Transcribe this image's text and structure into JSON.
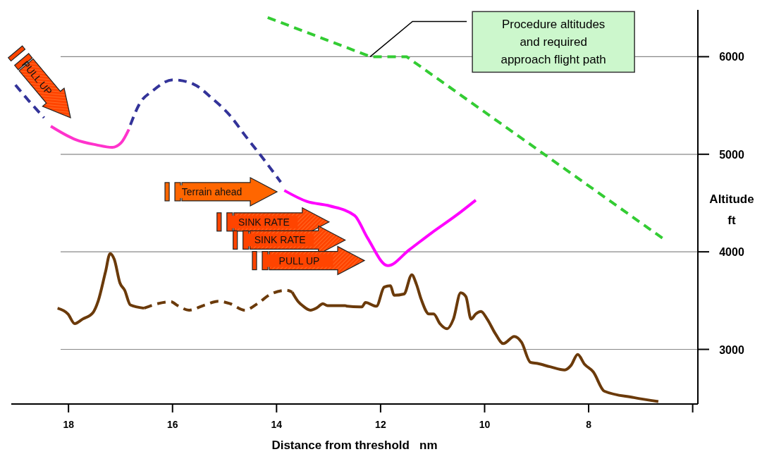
{
  "chart_data": {
    "type": "line",
    "xlabel": "Distance from threshold   nm",
    "ylabel": "Altitude\nft",
    "xlim": [
      19.1,
      5.9
    ],
    "ylim": [
      2440,
      6480
    ],
    "xticks": [
      18,
      16,
      14,
      12,
      10,
      8,
      {
        "value": 6,
        "label": null
      }
    ],
    "yticks": [
      3000,
      4000,
      5000,
      6000
    ],
    "grid": "y",
    "series": [
      {
        "color": "#6b3a0a",
        "line_style": "solid",
        "x": [
          18.21,
          18.01,
          17.88,
          17.73,
          17.53,
          17.43,
          17.29,
          17.2,
          17.12,
          17.01,
          16.92,
          16.81,
          16.55
        ],
        "values": [
          3422,
          3363,
          3264,
          3310,
          3376,
          3494,
          3791,
          3982,
          3923,
          3679,
          3606,
          3455,
          3422
        ]
      },
      {
        "color": "#6b3a0a",
        "line_style": "dashed",
        "x": [
          16.55,
          16.29,
          16.03,
          15.9,
          15.68,
          15.38,
          15.12,
          14.89,
          14.61,
          14.37,
          14.11,
          13.81,
          13.7
        ],
        "values": [
          3422,
          3468,
          3488,
          3448,
          3402,
          3455,
          3494,
          3468,
          3402,
          3468,
          3567,
          3606,
          3587
        ]
      },
      {
        "color": "#6b3a0a",
        "line_style": "solid",
        "x": [
          13.7,
          13.59,
          13.5,
          13.35,
          13.22,
          13.11,
          13.02,
          12.68,
          12.64,
          12.36,
          12.29,
          12.08,
          11.93,
          11.81,
          11.74,
          11.55,
          11.4,
          11.31,
          11.22,
          11.07,
          10.98,
          10.86,
          10.72,
          10.6,
          10.46,
          10.36,
          10.26,
          10.17,
          10.07,
          9.95,
          9.79,
          9.64,
          9.43,
          9.29,
          9.12,
          8.98,
          8.74,
          8.46,
          8.34,
          8.21,
          8.08,
          7.91,
          7.7,
          7.13,
          6.66
        ],
        "values": [
          3587,
          3494,
          3448,
          3402,
          3428,
          3468,
          3448,
          3448,
          3442,
          3435,
          3481,
          3442,
          3639,
          3653,
          3554,
          3567,
          3765,
          3666,
          3514,
          3363,
          3363,
          3264,
          3211,
          3310,
          3580,
          3541,
          3310,
          3363,
          3389,
          3310,
          3158,
          3059,
          3132,
          3073,
          2868,
          2855,
          2822,
          2789,
          2835,
          2947,
          2848,
          2769,
          2572,
          2506,
          2466
        ]
      },
      {
        "color": "#333399",
        "line_style": "dashed",
        "x": [
          19.02,
          18.78,
          18.47
        ],
        "values": [
          5710,
          5558,
          5374
        ]
      },
      {
        "color": "#333399",
        "line_style": "dashed",
        "x": [
          16.81,
          16.64,
          16.38,
          15.99,
          15.59,
          15.25,
          14.89,
          14.6,
          14.29,
          13.92
        ],
        "values": [
          5301,
          5512,
          5651,
          5763,
          5717,
          5578,
          5394,
          5189,
          4978,
          4715
        ]
      },
      {
        "color": "#ff33cc",
        "line_style": "solid",
        "x": [
          18.34,
          17.86,
          17.47,
          17.16,
          16.99,
          16.84
        ],
        "values": [
          5288,
          5150,
          5097,
          5071,
          5117,
          5255
        ]
      },
      {
        "color": "#ff00ff",
        "line_style": "solid",
        "x": [
          13.85,
          13.42,
          12.98,
          12.5,
          12.25,
          11.86,
          11.45,
          11.02,
          10.55,
          10.17
        ],
        "values": [
          4629,
          4517,
          4471,
          4372,
          4141,
          3858,
          4020,
          4194,
          4372,
          4530
        ]
      },
      {
        "color": "#33cc33",
        "line_style": "dashed",
        "x": [
          14.17,
          12.19,
          11.5,
          6.53
        ],
        "values": [
          6402,
          6000,
          6000,
          4121
        ]
      }
    ],
    "annotations": [
      "Procedure altitudes\nand required\napproach flight path",
      "PULL UP",
      "Terrain ahead",
      "SINK RATE",
      "SINK RATE",
      "PULL UP"
    ]
  }
}
